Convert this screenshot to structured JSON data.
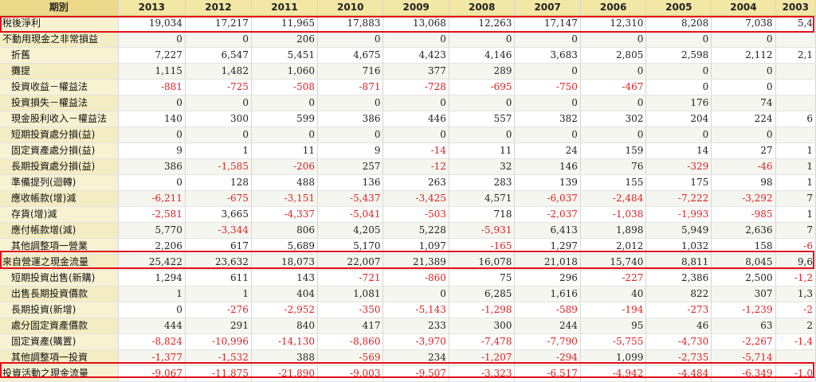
{
  "header": {
    "period_label": "期別",
    "years": [
      "2013",
      "2012",
      "2011",
      "2010",
      "2009",
      "2008",
      "2007",
      "2006",
      "2005",
      "2004",
      "2003"
    ]
  },
  "rows": [
    {
      "label": "稅後淨利",
      "indent": false,
      "values": [
        "19,034",
        "17,217",
        "11,965",
        "17,883",
        "13,068",
        "12,263",
        "17,147",
        "12,310",
        "8,208",
        "7,038",
        "5,4"
      ]
    },
    {
      "label": "不動用現金之非常損益",
      "indent": false,
      "values": [
        "0",
        "0",
        "206",
        "0",
        "0",
        "0",
        "0",
        "0",
        "0",
        "0",
        ""
      ]
    },
    {
      "label": "折舊",
      "indent": true,
      "values": [
        "7,227",
        "6,547",
        "5,451",
        "4,675",
        "4,423",
        "4,146",
        "3,683",
        "2,805",
        "2,598",
        "2,112",
        "2,1"
      ]
    },
    {
      "label": "攤提",
      "indent": true,
      "values": [
        "1,115",
        "1,482",
        "1,060",
        "716",
        "377",
        "289",
        "0",
        "0",
        "0",
        "0",
        ""
      ]
    },
    {
      "label": "投資收益－權益法",
      "indent": true,
      "values": [
        "-881",
        "-725",
        "-508",
        "-871",
        "-728",
        "-695",
        "-750",
        "-467",
        "0",
        "0",
        ""
      ]
    },
    {
      "label": "投資損失－權益法",
      "indent": true,
      "values": [
        "0",
        "0",
        "0",
        "0",
        "0",
        "0",
        "0",
        "0",
        "176",
        "74",
        ""
      ]
    },
    {
      "label": "現金股利收入－權益法",
      "indent": true,
      "values": [
        "140",
        "300",
        "599",
        "386",
        "446",
        "557",
        "382",
        "302",
        "204",
        "224",
        "6"
      ]
    },
    {
      "label": "短期投資處分損(益)",
      "indent": true,
      "values": [
        "0",
        "0",
        "0",
        "0",
        "0",
        "0",
        "0",
        "0",
        "0",
        "0",
        ""
      ]
    },
    {
      "label": "固定資產處分損(益)",
      "indent": true,
      "values": [
        "9",
        "1",
        "11",
        "9",
        "-14",
        "11",
        "24",
        "159",
        "14",
        "27",
        "1"
      ]
    },
    {
      "label": "長期投資處分損(益)",
      "indent": true,
      "values": [
        "386",
        "-1,585",
        "-206",
        "257",
        "-12",
        "32",
        "146",
        "76",
        "-329",
        "-46",
        "1"
      ]
    },
    {
      "label": "準備提列(迴轉)",
      "indent": true,
      "values": [
        "0",
        "128",
        "488",
        "136",
        "263",
        "283",
        "139",
        "155",
        "175",
        "98",
        "1"
      ]
    },
    {
      "label": "應收帳款(增)減",
      "indent": true,
      "values": [
        "-6,211",
        "-675",
        "-3,151",
        "-5,437",
        "-3,425",
        "4,571",
        "-6,037",
        "-2,484",
        "-7,222",
        "-3,292",
        "7"
      ]
    },
    {
      "label": "存貨(增)減",
      "indent": true,
      "values": [
        "-2,581",
        "3,665",
        "-4,337",
        "-5,041",
        "-503",
        "718",
        "-2,037",
        "-1,038",
        "-1,993",
        "-985",
        "1"
      ]
    },
    {
      "label": "應付帳款增(減)",
      "indent": true,
      "values": [
        "5,770",
        "-3,344",
        "806",
        "4,205",
        "5,228",
        "-5,931",
        "6,413",
        "1,898",
        "5,949",
        "2,636",
        "7"
      ]
    },
    {
      "label": "其他調整項一營業",
      "indent": true,
      "values": [
        "2,206",
        "617",
        "5,689",
        "5,170",
        "1,097",
        "-165",
        "1,297",
        "2,012",
        "1,032",
        "158",
        "-6"
      ]
    },
    {
      "label": "來自營運之現金流量",
      "indent": false,
      "values": [
        "25,422",
        "23,632",
        "18,073",
        "22,007",
        "21,389",
        "16,078",
        "21,018",
        "15,740",
        "8,811",
        "8,045",
        "9,6"
      ]
    },
    {
      "label": "短期投資出售(新購)",
      "indent": true,
      "values": [
        "1,294",
        "611",
        "143",
        "-721",
        "-860",
        "75",
        "296",
        "-227",
        "2,386",
        "2,500",
        "-1,2"
      ]
    },
    {
      "label": "出售長期投資價款",
      "indent": true,
      "values": [
        "1",
        "1",
        "404",
        "1,081",
        "0",
        "6,285",
        "1,616",
        "40",
        "822",
        "307",
        "1,3"
      ]
    },
    {
      "label": "長期投資(新增)",
      "indent": true,
      "values": [
        "0",
        "-276",
        "-2,952",
        "-350",
        "-5,143",
        "-1,298",
        "-589",
        "-194",
        "-273",
        "-1,239",
        "-2"
      ]
    },
    {
      "label": "處分固定資產價款",
      "indent": true,
      "values": [
        "444",
        "291",
        "840",
        "417",
        "233",
        "300",
        "244",
        "95",
        "46",
        "63",
        "2"
      ]
    },
    {
      "label": "固定資產(購置)",
      "indent": true,
      "values": [
        "-8,824",
        "-10,996",
        "-14,130",
        "-8,860",
        "-3,970",
        "-7,478",
        "-7,790",
        "-5,755",
        "-4,730",
        "-2,267",
        "-1,4"
      ]
    },
    {
      "label": "其他調整項一投資",
      "indent": true,
      "values": [
        "-1,377",
        "-1,532",
        "388",
        "-569",
        "234",
        "-1,207",
        "-294",
        "1,099",
        "-2,735",
        "-5,714",
        ""
      ]
    },
    {
      "label": "投資活動之現金流量",
      "indent": false,
      "values": [
        "-9,067",
        "-11,875",
        "-21,890",
        "-9,003",
        "-9,507",
        "-3,323",
        "-6,517",
        "-4,942",
        "-4,484",
        "-6,349",
        "-1,0"
      ]
    }
  ],
  "colors": {
    "negative": "#e02020",
    "highlight": "#e0101a",
    "header_bg": "#f2e7a4",
    "label_bg": "#f8f2d2"
  }
}
